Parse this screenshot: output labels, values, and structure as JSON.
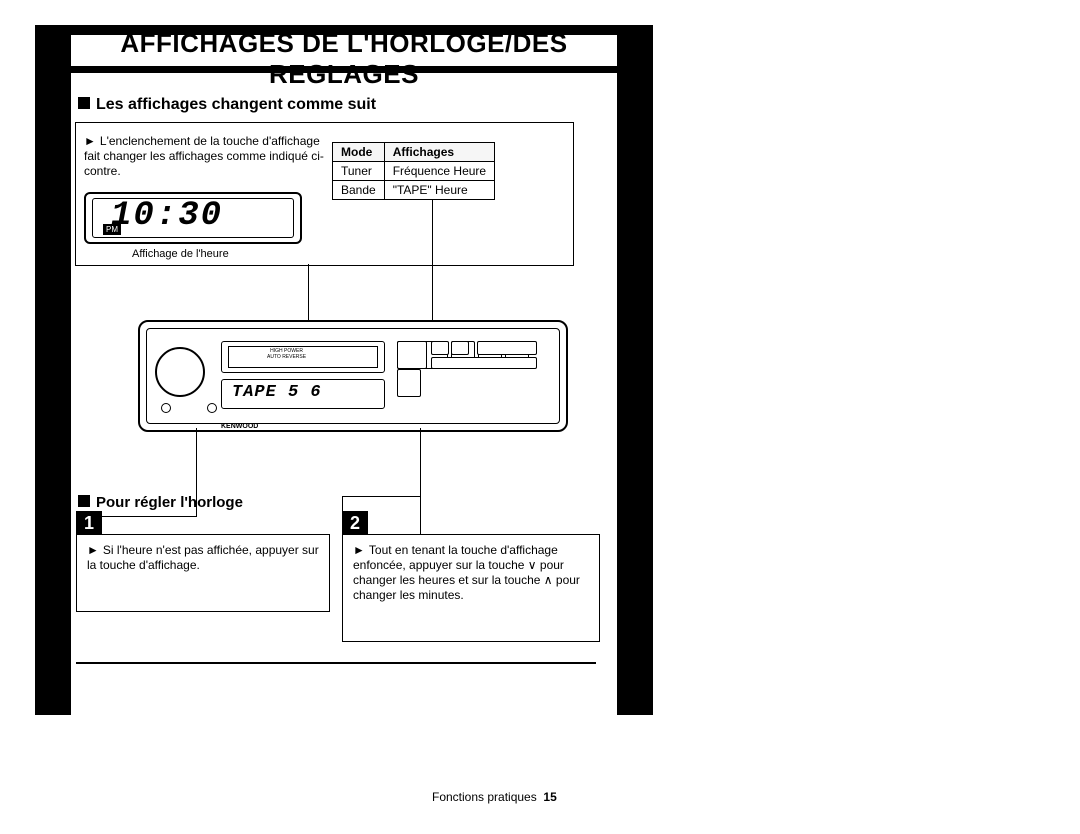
{
  "title": "AFFICHAGES DE L'HORLOGE/DES REGLAGES",
  "section1": {
    "heading": "Les affichages changent comme suit",
    "bullet": "L'enclenchement de la touche d'affichage fait changer les affichages comme indiqué ci-contre.",
    "table": {
      "head_mode": "Mode",
      "head_aff": "Affichages",
      "r1c1": "Tuner",
      "r1c2": "Fréquence   Heure",
      "r2c1": "Bande",
      "r2c2": "\"TAPE\"   Heure"
    },
    "lcd_time": "10:30",
    "lcd_pm": "PM",
    "lcd_caption": "Affichage de l'heure"
  },
  "radio": {
    "hp1": "HIGH POWER",
    "hp2": "AUTO REVERSE",
    "disp_txt": "TAPE 5  6",
    "brand": "KENWOOD"
  },
  "section2": {
    "heading": "Pour régler l'horloge",
    "step1_num": "1",
    "step1_txt": "Si l'heure n'est pas affichée, appuyer sur la touche d'affichage.",
    "step2_num": "2",
    "step2_txt": "Tout en tenant la touche d'affichage enfoncée, appuyer sur la touche ∨ pour changer les heures et sur la touche ∧ pour changer les minutes."
  },
  "footer": {
    "label": "Fonctions pratiques",
    "page": "15"
  }
}
